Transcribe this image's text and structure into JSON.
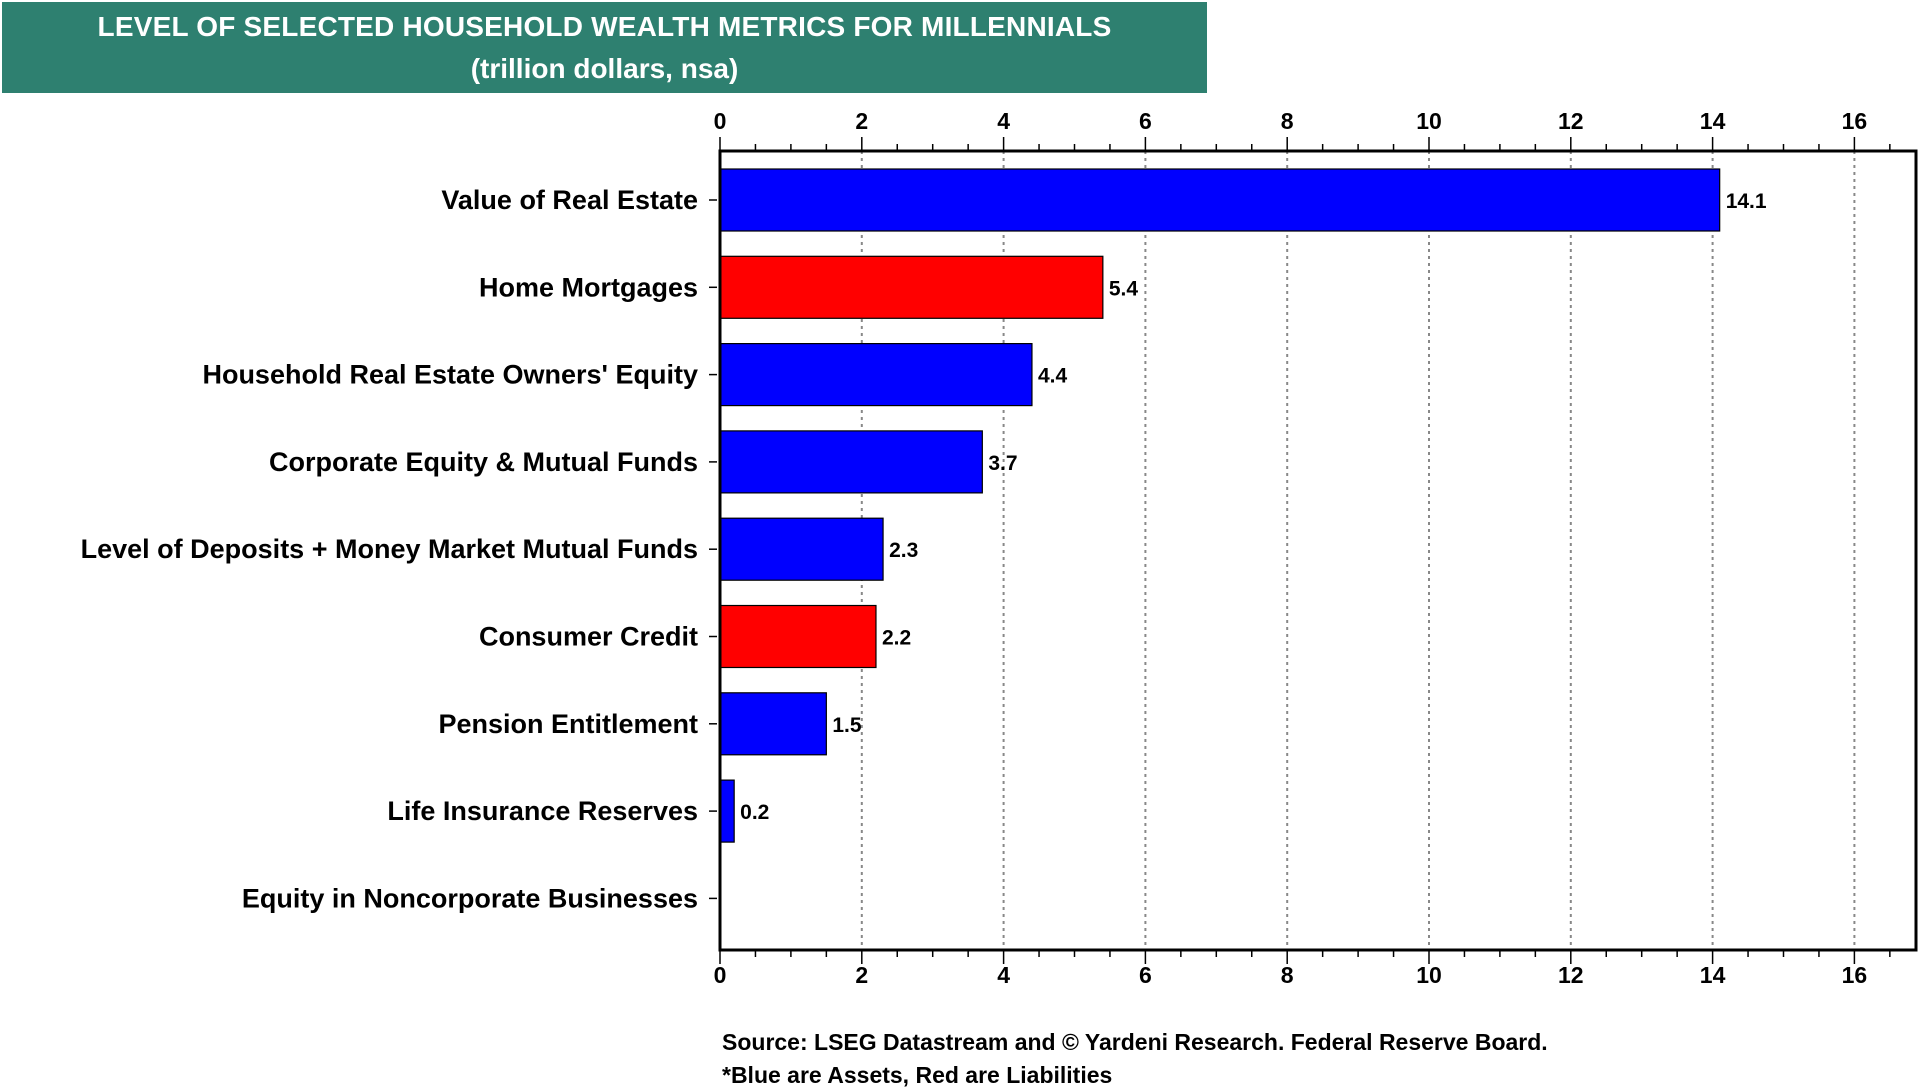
{
  "chart_data": {
    "type": "bar",
    "orientation": "horizontal",
    "title": "LEVEL OF SELECTED HOUSEHOLD WEALTH METRICS FOR MILLENNIALS",
    "subtitle": "(trillion dollars, nsa)",
    "categories": [
      "Value of Real Estate",
      "Home Mortgages",
      "Household Real Estate Owners' Equity",
      "Corporate Equity & Mutual Funds",
      "Level of Deposits + Money Market Mutual Funds",
      "Consumer Credit",
      "Pension Entitlement",
      "Life Insurance Reserves",
      "Equity in Noncorporate Businesses"
    ],
    "values": [
      14.1,
      5.4,
      4.4,
      3.7,
      2.3,
      2.2,
      1.5,
      0.2,
      null
    ],
    "value_labels": [
      "14.1",
      "5.4",
      "4.4",
      "3.7",
      "2.3",
      "2.2",
      "1.5",
      "0.2",
      ""
    ],
    "bar_types": [
      "asset",
      "liability",
      "asset",
      "asset",
      "asset",
      "liability",
      "asset",
      "asset",
      "asset"
    ],
    "colors": {
      "asset": "#0000ff",
      "liability": "#ff0000",
      "title_bg": "#2e8070"
    },
    "xlim": [
      0,
      16.8
    ],
    "xticks": [
      0,
      2,
      4,
      6,
      8,
      10,
      12,
      14,
      16
    ],
    "xtick_labels": [
      "0",
      "2",
      "4",
      "6",
      "8",
      "10",
      "12",
      "14",
      "16"
    ],
    "grid": "vertical dotted",
    "axis_position": "top and bottom",
    "xlabel": "",
    "ylabel": ""
  },
  "footnotes": {
    "source": "Source: LSEG Datastream and © Yardeni Research. Federal Reserve Board.",
    "note": "*Blue are Assets, Red are Liabilities"
  }
}
